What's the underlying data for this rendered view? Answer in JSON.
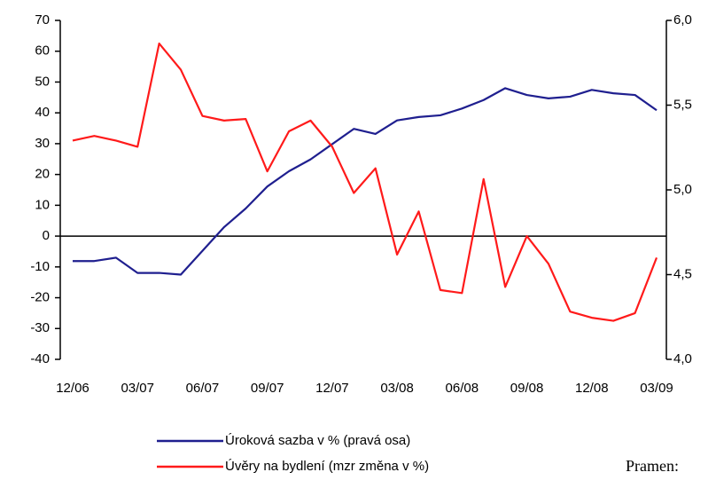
{
  "chart_data": {
    "type": "line",
    "categories": [
      "12/06",
      null,
      null,
      "03/07",
      null,
      null,
      "06/07",
      null,
      null,
      "09/07",
      null,
      null,
      "12/07",
      null,
      null,
      "03/08",
      null,
      null,
      "06/08",
      null,
      null,
      "09/08",
      null,
      null,
      "12/08",
      null,
      null,
      "03/09"
    ],
    "series": [
      {
        "name": "Úroková sazba v % (pravá osa)",
        "color": "#1f1f8f",
        "axis": "y2",
        "values": [
          4.58,
          4.58,
          4.6,
          4.51,
          4.51,
          4.5,
          4.64,
          4.78,
          4.89,
          5.02,
          5.11,
          5.18,
          5.27,
          5.36,
          5.33,
          5.41,
          5.43,
          5.44,
          5.48,
          5.53,
          5.6,
          5.56,
          5.54,
          5.55,
          5.59,
          5.57,
          5.56,
          5.47
        ]
      },
      {
        "name": "Úvěry na bydlení (mzr změna v %)",
        "color": "#ff1a1a",
        "values": [
          31,
          32.5,
          31,
          29,
          62.5,
          54,
          39,
          37.5,
          38,
          21,
          34,
          37.5,
          29,
          14,
          22,
          -6,
          8,
          -17.5,
          -18.5,
          18.5,
          -16.5,
          0,
          -9,
          -24.5,
          -26.5,
          -27.5,
          -25,
          -7
        ]
      }
    ],
    "ylim": [
      -40,
      70
    ],
    "yticks": [
      -40,
      -30,
      -20,
      -10,
      0,
      10,
      20,
      30,
      40,
      50,
      60,
      70
    ],
    "y2lim": [
      4.0,
      6.0
    ],
    "y2ticks": [
      {
        "value": 4.0,
        "label": "4,0"
      },
      {
        "value": 4.5,
        "label": "4,5"
      },
      {
        "value": 5.0,
        "label": "5,0"
      },
      {
        "value": 5.5,
        "label": "5,5"
      },
      {
        "value": 6.0,
        "label": "6,0"
      }
    ],
    "grid": false,
    "annotation": "Pramen:"
  }
}
